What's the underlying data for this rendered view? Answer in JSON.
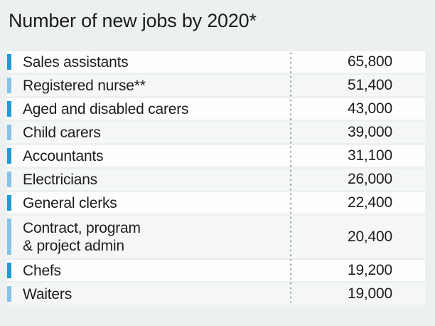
{
  "title": "Number of new jobs by 2020*",
  "colors": {
    "background": "#edf0f0",
    "row_odd_bg": "#fdfdfd",
    "row_even_bg": "#f5f7f7",
    "bar_dark": "#1e9cd7",
    "bar_light": "#87c3e4",
    "text": "#1d1d1b",
    "dotted_separator": "#98a1a2"
  },
  "chart_data": {
    "type": "table",
    "title": "Number of new jobs by 2020*",
    "categories": [
      "Sales assistants",
      "Registered nurse**",
      "Aged and disabled carers",
      "Child carers",
      "Accountants",
      "Electricians",
      "General clerks",
      "Contract, program & project admin",
      "Chefs",
      "Waiters"
    ],
    "values": [
      65800,
      51400,
      43000,
      39000,
      31100,
      26000,
      22400,
      20400,
      19200,
      19000
    ],
    "value_labels": [
      "65,800",
      "51,400",
      "43,000",
      "39,000",
      "31,100",
      "26,000",
      "22,400",
      "20,400",
      "19,200",
      "19,000"
    ],
    "layout": "ranked list, label column separated from right-aligned value column by vertical dotted line, alternating row shading, colored tick bar at left of each row alternating dark/light blue"
  },
  "rows": [
    {
      "label": "Sales assistants",
      "value": "65,800",
      "bar_color": "dark-blue"
    },
    {
      "label": "Registered nurse**",
      "value": "51,400",
      "bar_color": "light-blue"
    },
    {
      "label": "Aged and disabled carers",
      "value": "43,000",
      "bar_color": "dark-blue"
    },
    {
      "label": "Child carers",
      "value": "39,000",
      "bar_color": "light-blue"
    },
    {
      "label": "Accountants",
      "value": "31,100",
      "bar_color": "dark-blue"
    },
    {
      "label": "Electricians",
      "value": "26,000",
      "bar_color": "light-blue"
    },
    {
      "label": "General clerks",
      "value": "22,400",
      "bar_color": "dark-blue"
    },
    {
      "label": "Contract, program\n& project admin",
      "value": "20,400",
      "bar_color": "light-blue"
    },
    {
      "label": "Chefs",
      "value": "19,200",
      "bar_color": "dark-blue"
    },
    {
      "label": "Waiters",
      "value": "19,000",
      "bar_color": "light-blue"
    }
  ]
}
